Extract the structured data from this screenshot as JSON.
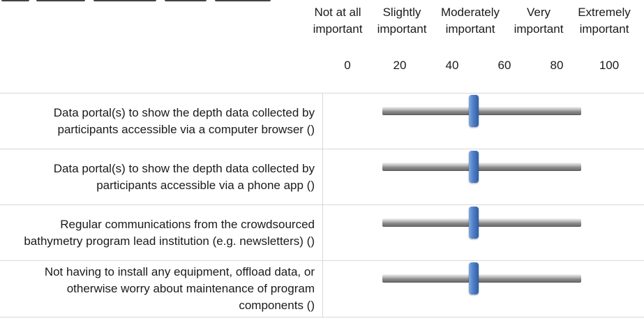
{
  "scale": {
    "anchors": [
      {
        "line1": "Not at all",
        "line2": "important"
      },
      {
        "line1": "Slightly",
        "line2": "important"
      },
      {
        "line1": "Moderately",
        "line2": "important"
      },
      {
        "line1": "Very",
        "line2": "important"
      },
      {
        "line1": "Extremely",
        "line2": "important"
      }
    ],
    "ticks": [
      "0",
      "20",
      "40",
      "60",
      "80",
      "100"
    ],
    "min": 0,
    "max": 100
  },
  "items": [
    {
      "label": "Data portal(s) to show the depth data collected by participants accessible via a computer browser ()",
      "value": 50
    },
    {
      "label": "Data portal(s) to show the depth data collected by participants accessible via a phone app ()",
      "value": 50
    },
    {
      "label": "Regular communications from the crowdsourced bathymetry program lead institution (e.g. newsletters) ()",
      "value": 50
    },
    {
      "label": "Not having to install any equipment, offload data, or otherwise worry about maintenance of program components ()",
      "value": 50
    }
  ]
}
